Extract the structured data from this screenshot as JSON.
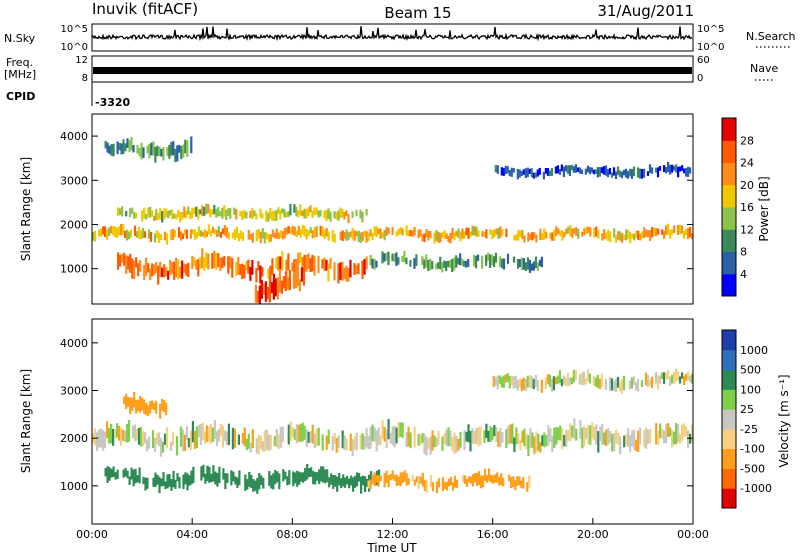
{
  "header": {
    "station": "Inuvik (fitACF)",
    "beam": "Beam 15",
    "date": "31/Aug/2011"
  },
  "colors": {
    "power_scale": [
      "#0000ff",
      "#2b5fa8",
      "#3a8a5c",
      "#8bc34a",
      "#f0c800",
      "#ff8c1a",
      "#ff5a00",
      "#e60000"
    ],
    "velocity_scale": [
      "#1f3fa8",
      "#2f6fc0",
      "#2e8a54",
      "#7ed04b",
      "#c8c8c0",
      "#f5d080",
      "#ff9e1a",
      "#ff6a00",
      "#e00000"
    ]
  },
  "chart_data": [
    {
      "type": "line",
      "panel": "noise",
      "ylabel_left": "N.Sky",
      "ylabel_right": "N.Search",
      "left_ticks": [
        "10^5",
        "10^0"
      ],
      "right_ticks": [
        "10^5",
        "10^0"
      ],
      "series": [
        {
          "name": "N.Search",
          "style": "dotted"
        }
      ],
      "x_range_hours": [
        0,
        24
      ]
    },
    {
      "type": "line",
      "panel": "frequency",
      "ylabel_left_lines": [
        "Freq.",
        "[MHz]"
      ],
      "ylabel_right": "Nave",
      "left_ticks": [
        "12",
        "8"
      ],
      "right_ticks": [
        "60",
        "0"
      ],
      "series": [
        {
          "name": "Nave",
          "style": "dotted"
        }
      ],
      "x_range_hours": [
        0,
        24
      ]
    },
    {
      "type": "table",
      "panel": "cpid",
      "label": "CPID",
      "value": "-3320"
    },
    {
      "type": "heatmap",
      "panel": "power",
      "ylabel": "Slant Range [km]",
      "yticks": [
        1000,
        2000,
        3000,
        4000
      ],
      "ylim": [
        200,
        4500
      ],
      "x_range_hours": [
        0,
        24
      ],
      "colorbar_label": "Power [dB]",
      "colorbar_ticks": [
        "28",
        "24",
        "20",
        "16",
        "12",
        "8",
        "4"
      ],
      "bands": [
        {
          "from": 0.0,
          "to": 24.0,
          "center": 1780,
          "width": 220,
          "value_db": 22
        },
        {
          "from": 1.0,
          "to": 11.0,
          "center": 1050,
          "width": 380,
          "value_db": 26
        },
        {
          "from": 11.0,
          "to": 18.0,
          "center": 1150,
          "width": 260,
          "value_db": 12
        },
        {
          "from": 1.0,
          "to": 11.0,
          "center": 2250,
          "width": 220,
          "value_db": 18
        },
        {
          "from": 16.0,
          "to": 24.0,
          "center": 3200,
          "width": 200,
          "value_db": 8
        },
        {
          "from": 0.5,
          "to": 4.0,
          "center": 3700,
          "width": 320,
          "value_db": 12
        },
        {
          "from": 6.5,
          "to": 8.5,
          "center": 600,
          "width": 500,
          "value_db": 27
        }
      ]
    },
    {
      "type": "heatmap",
      "panel": "velocity",
      "ylabel": "Slant Range [km]",
      "yticks": [
        1000,
        2000,
        3000,
        4000
      ],
      "ylim": [
        200,
        4500
      ],
      "x_range_hours": [
        0,
        24
      ],
      "xticks": [
        "00:00",
        "04:00",
        "08:00",
        "12:00",
        "16:00",
        "20:00",
        "00:00"
      ],
      "xlabel": "Time UT",
      "colorbar_label": "Velocity [m s⁻¹]",
      "colorbar_ticks": [
        "1000",
        "500",
        "100",
        "25",
        "-25",
        "-100",
        "-500",
        "-1000"
      ],
      "bands": [
        {
          "from": 0.0,
          "to": 24.0,
          "center": 2000,
          "width": 380,
          "value_ms": 0
        },
        {
          "from": 0.5,
          "to": 11.5,
          "center": 1150,
          "width": 300,
          "value_ms": 150
        },
        {
          "from": 11.0,
          "to": 17.5,
          "center": 1100,
          "width": 250,
          "value_ms": -120
        },
        {
          "from": 1.0,
          "to": 3.0,
          "center": 2700,
          "width": 300,
          "value_ms": -150
        },
        {
          "from": 16.0,
          "to": 24.0,
          "center": 3200,
          "width": 250,
          "value_ms": 0
        }
      ]
    }
  ]
}
